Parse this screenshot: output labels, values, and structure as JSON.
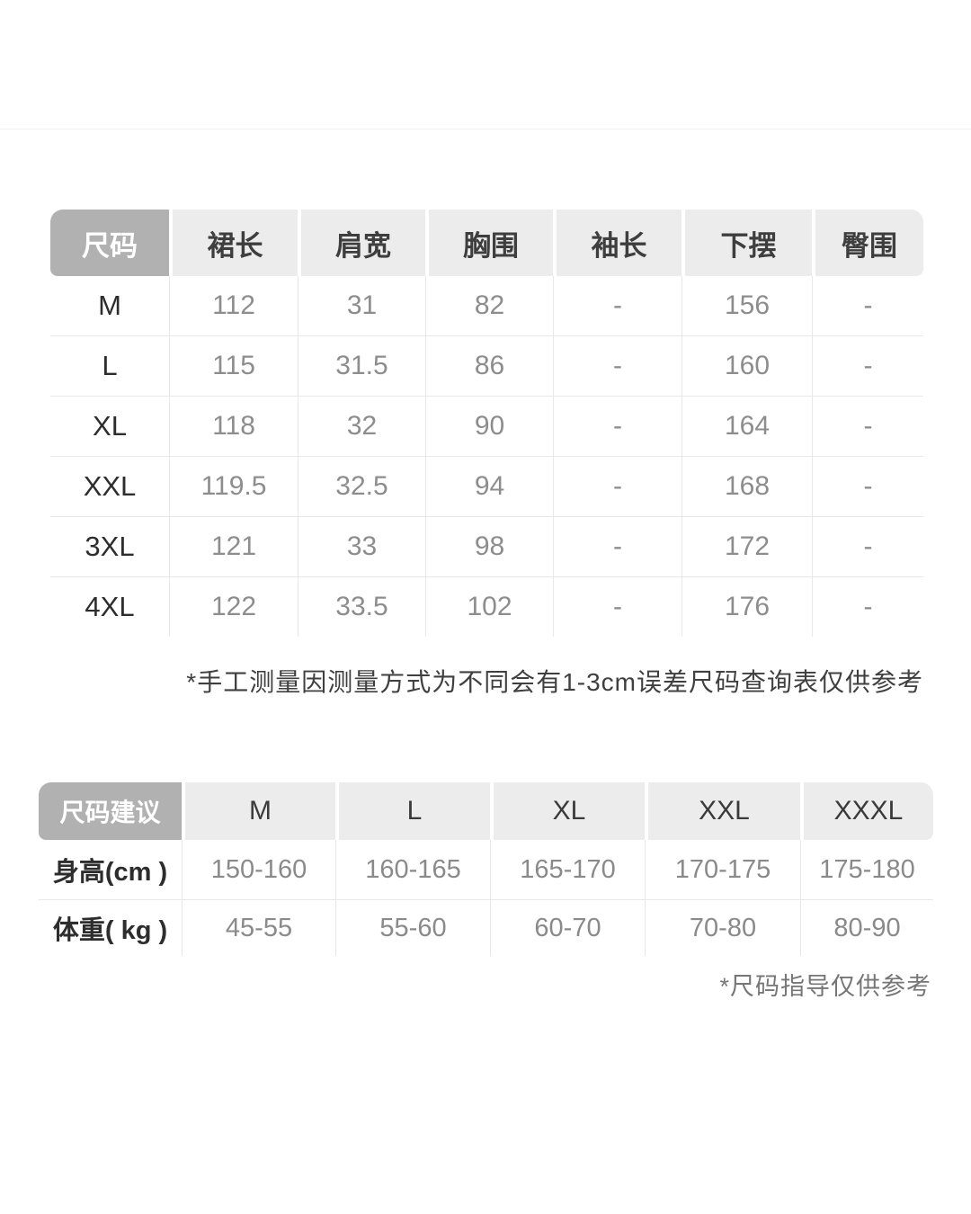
{
  "colors": {
    "page_background": "#ffffff",
    "corner_header_bg": "#b1b1b1",
    "corner_header_text": "#ffffff",
    "header_bg": "#ececec",
    "header_text": "#3e3e3e",
    "value_text": "#8d8d8d",
    "size_text": "#2d2d2d",
    "grid_line": "#e8e8e8",
    "note1_text": "#3f3f3f",
    "note2_text": "#767676"
  },
  "size_table": {
    "corner_header": "尺码",
    "columns": [
      "裙长",
      "肩宽",
      "胸围",
      "袖长",
      "下摆",
      "臀围"
    ],
    "rows": [
      {
        "size": "M",
        "values": [
          "112",
          "31",
          "82",
          "-",
          "156",
          "-"
        ]
      },
      {
        "size": "L",
        "values": [
          "115",
          "31.5",
          "86",
          "-",
          "160",
          "-"
        ]
      },
      {
        "size": "XL",
        "values": [
          "118",
          "32",
          "90",
          "-",
          "164",
          "-"
        ]
      },
      {
        "size": "XXL",
        "values": [
          "119.5",
          "32.5",
          "94",
          "-",
          "168",
          "-"
        ]
      },
      {
        "size": "3XL",
        "values": [
          "121",
          "33",
          "98",
          "-",
          "172",
          "-"
        ]
      },
      {
        "size": "4XL",
        "values": [
          "122",
          "33.5",
          "102",
          "-",
          "176",
          "-"
        ]
      }
    ],
    "note": "*手工测量因测量方式为不同会有1-3cm误差尺码查询表仅供参考"
  },
  "suggestion_table": {
    "corner_header": "尺码建议",
    "columns": [
      "M",
      "L",
      "XL",
      "XXL",
      "XXXL"
    ],
    "rows": [
      {
        "label": "身高(cm )",
        "values": [
          "150-160",
          "160-165",
          "165-170",
          "170-175",
          "175-180"
        ]
      },
      {
        "label": "体重( kg )",
        "values": [
          "45-55",
          "55-60",
          "60-70",
          "70-80",
          "80-90"
        ]
      }
    ],
    "note": "*尺码指导仅供参考"
  }
}
